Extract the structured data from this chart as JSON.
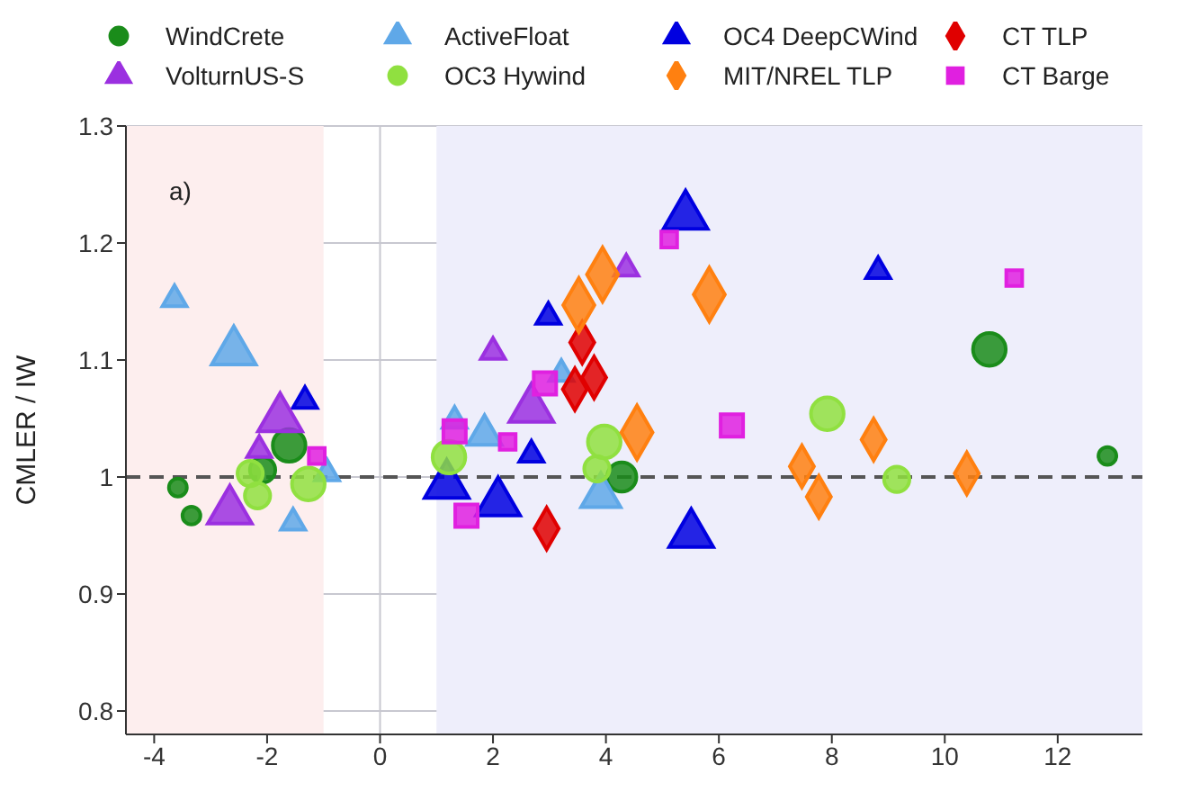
{
  "chart_data": {
    "type": "bubble",
    "ylabel": "CMLER / IW",
    "annotations": [
      "a)"
    ],
    "xlim": [
      -4.5,
      13.5
    ],
    "xticks": [
      -4,
      -2,
      0,
      2,
      4,
      6,
      8,
      10,
      12
    ],
    "ylim": [
      0.78,
      1.3
    ],
    "yticks": [
      0.8,
      0.9,
      1,
      1.1,
      1.2,
      1.3
    ],
    "grid": true,
    "legend": "top",
    "bands": [
      {
        "axis": "x",
        "from": -4.5,
        "to": -1,
        "color": "#fdeeee"
      },
      {
        "axis": "x",
        "from": 1,
        "to": 13.5,
        "color": "#eeeefb"
      }
    ],
    "ref_lines": [
      {
        "axis": "y",
        "value": 1,
        "color": "#555555",
        "line_style": "dashed"
      }
    ],
    "series": [
      {
        "name": "WindCrete",
        "color": "#1a8c1a",
        "marker": "circle",
        "x": [
          -3.58,
          -3.34,
          -1.61,
          -2.08,
          4.28,
          10.79,
          12.88
        ],
        "values": [
          0.991,
          0.967,
          1.027,
          1.006,
          1.0,
          1.109,
          1.018
        ],
        "sizes": [
          0.3,
          0.3,
          1,
          0.6,
          0.8,
          1,
          0.3
        ]
      },
      {
        "name": "ActiveFloat",
        "color": "#5fa8e8",
        "marker": "triangle",
        "x": [
          -3.64,
          -2.59,
          -1.54,
          -0.94,
          1.32,
          1.85,
          3.21,
          3.91
        ],
        "values": [
          1.152,
          1.107,
          0.961,
          1.003,
          1.048,
          1.036,
          1.088,
          0.984
        ],
        "sizes": [
          0.3,
          1,
          0.3,
          0.3,
          0.3,
          0.6,
          0.3,
          0.8
        ]
      },
      {
        "name": "OC4 DeepCWind",
        "color": "#0000e0",
        "marker": "triangle",
        "x": [
          -1.33,
          1.18,
          2.09,
          2.68,
          2.98,
          5.41,
          5.51,
          8.82
        ],
        "values": [
          1.065,
          0.993,
          0.978,
          1.019,
          1.137,
          1.223,
          0.951,
          1.176
        ],
        "sizes": [
          0.3,
          1,
          1,
          0.3,
          0.3,
          1,
          1,
          0.3
        ]
      },
      {
        "name": "CT TLP",
        "color": "#e00000",
        "marker": "diamond",
        "x": [
          2.95,
          3.45,
          3.58,
          3.79
        ],
        "values": [
          0.956,
          1.075,
          1.115,
          1.085
        ],
        "sizes": [
          0.6,
          0.6,
          0.6,
          0.6
        ]
      },
      {
        "name": "VolturnUS-S",
        "color": "#9b30e0",
        "marker": "triangle",
        "x": [
          -2.66,
          -1.77,
          -2.14,
          2.0,
          2.68,
          4.36
        ],
        "values": [
          0.971,
          1.05,
          1.023,
          1.107,
          1.058,
          1.178
        ],
        "sizes": [
          1,
          1,
          0.3,
          0.3,
          1,
          0.3
        ]
      },
      {
        "name": "OC3 Hywind",
        "color": "#90e040",
        "marker": "circle",
        "x": [
          -2.3,
          -2.17,
          -1.27,
          1.22,
          3.97,
          3.84,
          7.92,
          9.15
        ],
        "values": [
          1.003,
          0.984,
          0.994,
          1.017,
          1.03,
          1.007,
          1.054,
          0.998
        ],
        "sizes": [
          0.6,
          0.6,
          1,
          1,
          1,
          0.6,
          1,
          0.6
        ]
      },
      {
        "name": "MIT/NREL TLP",
        "color": "#ff8010",
        "marker": "diamond",
        "x": [
          3.94,
          3.52,
          5.83,
          4.55,
          7.47,
          7.77,
          8.74,
          10.39
        ],
        "values": [
          1.173,
          1.147,
          1.156,
          1.038,
          1.009,
          0.983,
          1.032,
          1.003
        ],
        "sizes": [
          1,
          1,
          1,
          1,
          0.6,
          0.6,
          0.6,
          0.6
        ]
      },
      {
        "name": "CT Barge",
        "color": "#e020e0",
        "marker": "square",
        "x": [
          -1.12,
          1.32,
          1.53,
          2.26,
          2.92,
          5.12,
          6.23,
          11.23
        ],
        "values": [
          1.018,
          1.039,
          0.967,
          1.03,
          1.08,
          1.203,
          1.044,
          1.17
        ],
        "sizes": [
          0.3,
          0.6,
          0.6,
          0.3,
          0.6,
          0.3,
          0.6,
          0.3
        ]
      }
    ]
  }
}
